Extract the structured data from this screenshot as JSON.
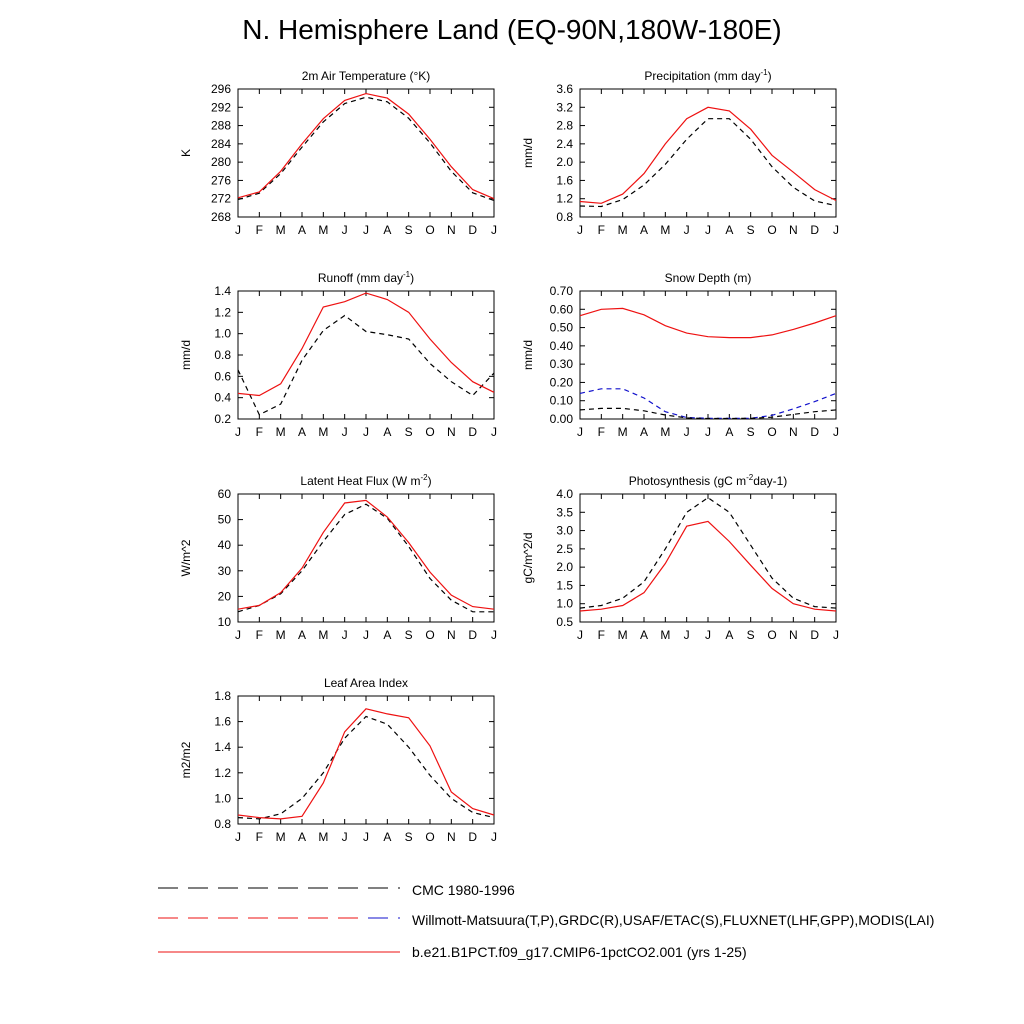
{
  "title": "N. Hemisphere Land (EQ-90N,180W-180E)",
  "months": [
    "J",
    "F",
    "M",
    "A",
    "M",
    "J",
    "J",
    "A",
    "S",
    "O",
    "N",
    "D",
    "J"
  ],
  "colors": {
    "model": "#ee1111",
    "obs": "#000000",
    "obs_alt": "#1111cc"
  },
  "legend": [
    {
      "label": "CMC 1980-1996",
      "style": "dashed",
      "colors": [
        "#000000"
      ]
    },
    {
      "label": "Willmott-Matsuura(T,P),GRDC(R),USAF/ETAC(S),FLUXNET(LHF,GPP),MODIS(LAI)",
      "style": "dashed",
      "colors": [
        "#ee1111",
        "#1111cc"
      ]
    },
    {
      "label": "b.e21.B1PCT.f09_g17.CMIP6-1pctCO2.001 (yrs 1-25)",
      "style": "solid",
      "colors": [
        "#ee1111"
      ]
    }
  ],
  "chart_data": [
    {
      "type": "line",
      "title": "2m Air Temperature (°K)",
      "ylabel": "K",
      "ylim": [
        268,
        296
      ],
      "yticks": [
        268,
        272,
        276,
        280,
        284,
        288,
        292,
        296
      ],
      "yticklabels": [
        "268",
        "272",
        "276",
        "280",
        "284",
        "288",
        "292",
        "296"
      ],
      "series": [
        {
          "color": "#ee1111",
          "dash": "solid",
          "values": [
            272.2,
            273.5,
            278,
            284,
            289.5,
            293.5,
            295,
            294,
            290.5,
            285,
            279,
            274,
            272
          ]
        },
        {
          "color": "#000000",
          "dash": "dashed",
          "values": [
            271.8,
            273.2,
            277.5,
            283.3,
            288.8,
            292.8,
            294.2,
            293.2,
            289.6,
            284.2,
            278,
            273.3,
            271.6
          ]
        }
      ]
    },
    {
      "type": "line",
      "title": "Precipitation (mm day-1)",
      "ylabel": "mm/d",
      "ylim": [
        0.8,
        3.6
      ],
      "yticks": [
        0.8,
        1.2,
        1.6,
        2.0,
        2.4,
        2.8,
        3.2,
        3.6
      ],
      "yticklabels": [
        "0.8",
        "1.2",
        "1.6",
        "2.0",
        "2.4",
        "2.8",
        "3.2",
        "3.6"
      ],
      "series": [
        {
          "color": "#ee1111",
          "dash": "solid",
          "values": [
            1.14,
            1.1,
            1.3,
            1.75,
            2.4,
            2.95,
            3.2,
            3.12,
            2.72,
            2.15,
            1.78,
            1.4,
            1.16
          ]
        },
        {
          "color": "#000000",
          "dash": "dashed",
          "values": [
            1.04,
            1.03,
            1.18,
            1.5,
            1.95,
            2.5,
            2.95,
            2.95,
            2.5,
            1.9,
            1.45,
            1.15,
            1.05
          ]
        }
      ]
    },
    {
      "type": "line",
      "title": "Runoff (mm day-1)",
      "ylabel": "mm/d",
      "ylim": [
        0.2,
        1.4
      ],
      "yticks": [
        0.2,
        0.4,
        0.6,
        0.8,
        1.0,
        1.2,
        1.4
      ],
      "yticklabels": [
        "0.2",
        "0.4",
        "0.6",
        "0.8",
        "1.0",
        "1.2",
        "1.4"
      ],
      "series": [
        {
          "color": "#ee1111",
          "dash": "solid",
          "values": [
            0.44,
            0.42,
            0.53,
            0.86,
            1.25,
            1.3,
            1.38,
            1.32,
            1.2,
            0.95,
            0.73,
            0.55,
            0.45
          ]
        },
        {
          "color": "#000000",
          "dash": "dashed",
          "values": [
            0.66,
            0.24,
            0.34,
            0.75,
            1.03,
            1.17,
            1.02,
            0.99,
            0.95,
            0.72,
            0.55,
            0.42,
            0.63
          ]
        }
      ]
    },
    {
      "type": "line",
      "title": "Snow Depth (m)",
      "ylabel": "mm/d",
      "ylim": [
        0,
        0.7
      ],
      "yticks": [
        0,
        0.1,
        0.2,
        0.3,
        0.4,
        0.5,
        0.6,
        0.7
      ],
      "yticklabels": [
        "0.00",
        "0.10",
        "0.20",
        "0.30",
        "0.40",
        "0.50",
        "0.60",
        "0.70"
      ],
      "series": [
        {
          "color": "#ee1111",
          "dash": "solid",
          "values": [
            0.565,
            0.6,
            0.605,
            0.57,
            0.51,
            0.47,
            0.45,
            0.445,
            0.445,
            0.46,
            0.49,
            0.525,
            0.565
          ]
        },
        {
          "color": "#1111cc",
          "dash": "dashed",
          "values": [
            0.14,
            0.165,
            0.165,
            0.115,
            0.04,
            0.008,
            0.004,
            0.004,
            0.004,
            0.02,
            0.055,
            0.095,
            0.14
          ]
        },
        {
          "color": "#000000",
          "dash": "dashed",
          "values": [
            0.05,
            0.058,
            0.058,
            0.045,
            0.022,
            0.006,
            0.003,
            0.003,
            0.004,
            0.01,
            0.025,
            0.04,
            0.05
          ]
        }
      ]
    },
    {
      "type": "line",
      "title": "Latent Heat Flux (W m-2)",
      "ylabel": "W/m^2",
      "ylim": [
        10,
        60
      ],
      "yticks": [
        10,
        20,
        30,
        40,
        50,
        60
      ],
      "yticklabels": [
        "10",
        "20",
        "30",
        "40",
        "50",
        "60"
      ],
      "series": [
        {
          "color": "#ee1111",
          "dash": "solid",
          "values": [
            15,
            16.5,
            21.5,
            31,
            45,
            56.5,
            57.5,
            51,
            41,
            29.5,
            20.5,
            16,
            15
          ]
        },
        {
          "color": "#000000",
          "dash": "dashed",
          "values": [
            14,
            16.5,
            21,
            30,
            41.5,
            52,
            56,
            50.5,
            39.5,
            27,
            18.5,
            14,
            14
          ]
        }
      ]
    },
    {
      "type": "line",
      "title": "Photosynthesis (gC m-2day-1)",
      "ylabel": "gC/m^2/d",
      "ylim": [
        0.5,
        4.0
      ],
      "yticks": [
        0.5,
        1.0,
        1.5,
        2.0,
        2.5,
        3.0,
        3.5,
        4.0
      ],
      "yticklabels": [
        "0.5",
        "1.0",
        "1.5",
        "2.0",
        "2.5",
        "3.0",
        "3.5",
        "4.0"
      ],
      "series": [
        {
          "color": "#ee1111",
          "dash": "solid",
          "values": [
            0.8,
            0.85,
            0.95,
            1.3,
            2.1,
            3.12,
            3.25,
            2.7,
            2.05,
            1.42,
            1.0,
            0.85,
            0.8
          ]
        },
        {
          "color": "#000000",
          "dash": "dashed",
          "values": [
            0.88,
            0.95,
            1.15,
            1.6,
            2.5,
            3.5,
            3.9,
            3.5,
            2.6,
            1.7,
            1.15,
            0.92,
            0.88
          ]
        }
      ]
    },
    {
      "type": "line",
      "title": "Leaf Area Index",
      "ylabel": "m2/m2",
      "ylim": [
        0.8,
        1.8
      ],
      "yticks": [
        0.8,
        1.0,
        1.2,
        1.4,
        1.6,
        1.8
      ],
      "yticklabels": [
        "0.8",
        "1.0",
        "1.2",
        "1.4",
        "1.6",
        "1.8"
      ],
      "series": [
        {
          "color": "#ee1111",
          "dash": "solid",
          "values": [
            0.87,
            0.85,
            0.84,
            0.86,
            1.12,
            1.52,
            1.7,
            1.66,
            1.63,
            1.41,
            1.05,
            0.92,
            0.87
          ]
        },
        {
          "color": "#000000",
          "dash": "dashed",
          "values": [
            0.85,
            0.84,
            0.88,
            1.0,
            1.2,
            1.47,
            1.64,
            1.58,
            1.4,
            1.18,
            1.0,
            0.89,
            0.85
          ]
        }
      ]
    }
  ]
}
